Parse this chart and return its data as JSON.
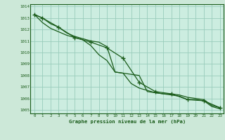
{
  "title": "Graphe pression niveau de la mer (hPa)",
  "background_color": "#cce8d8",
  "plot_bg_color": "#ccede0",
  "grid_color": "#99ccbb",
  "line_color": "#1a5c1a",
  "marker_color": "#1a5c1a",
  "xlim": [
    -0.5,
    23.5
  ],
  "ylim": [
    1004.7,
    1014.2
  ],
  "yticks": [
    1005,
    1006,
    1007,
    1008,
    1009,
    1010,
    1011,
    1012,
    1013,
    1014
  ],
  "xticks": [
    0,
    1,
    2,
    3,
    4,
    5,
    6,
    7,
    8,
    9,
    10,
    11,
    12,
    13,
    14,
    15,
    16,
    17,
    18,
    19,
    20,
    21,
    22,
    23
  ],
  "series1_x": [
    0,
    1,
    2,
    3,
    4,
    5,
    6,
    7,
    8,
    9,
    10,
    11,
    12,
    13,
    14,
    15,
    16,
    17,
    18,
    19,
    20,
    21,
    22,
    23
  ],
  "series1_y": [
    1013.3,
    1013.0,
    1012.5,
    1012.2,
    1011.7,
    1011.4,
    1011.2,
    1011.0,
    1010.9,
    1010.5,
    1008.3,
    1008.2,
    1008.1,
    1008.0,
    1006.6,
    1006.5,
    1006.4,
    1006.4,
    1006.3,
    1006.1,
    1006.0,
    1005.9,
    1005.4,
    1005.2
  ],
  "series2_x": [
    0,
    1,
    2,
    3,
    4,
    5,
    6,
    7,
    8,
    9,
    10,
    11,
    12,
    13,
    14,
    15,
    16,
    17,
    18,
    19,
    20,
    21,
    22,
    23
  ],
  "series2_y": [
    1013.3,
    1012.6,
    1012.1,
    1011.8,
    1011.5,
    1011.3,
    1011.1,
    1010.6,
    1009.8,
    1009.3,
    1008.3,
    1008.2,
    1007.3,
    1006.9,
    1006.7,
    1006.5,
    1006.4,
    1006.3,
    1006.2,
    1005.9,
    1005.9,
    1005.8,
    1005.3,
    1005.1
  ],
  "series3_x": [
    0,
    1,
    3,
    5,
    7,
    9,
    11,
    13,
    15,
    17,
    19,
    21,
    23
  ],
  "series3_y": [
    1013.3,
    1013.0,
    1012.2,
    1011.3,
    1010.9,
    1010.4,
    1009.5,
    1007.4,
    1006.6,
    1006.4,
    1005.9,
    1005.8,
    1005.2
  ]
}
